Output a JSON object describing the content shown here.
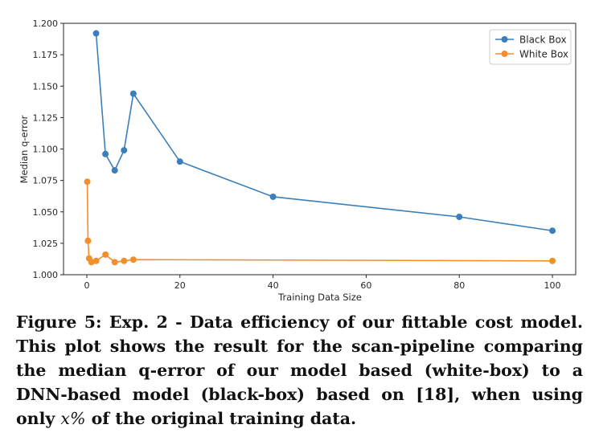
{
  "chart_data": {
    "type": "line",
    "title": "",
    "xlabel": "Training Data Size",
    "ylabel": "Median q-error",
    "xlim": [
      -5,
      105
    ],
    "ylim": [
      1.0,
      1.2
    ],
    "xticks": [
      0,
      20,
      40,
      60,
      80,
      100
    ],
    "yticks": [
      1.0,
      1.025,
      1.05,
      1.075,
      1.1,
      1.125,
      1.15,
      1.175,
      1.2
    ],
    "ytick_labels": [
      "1.000",
      "1.025",
      "1.050",
      "1.075",
      "1.100",
      "1.125",
      "1.150",
      "1.175",
      "1.200"
    ],
    "grid": false,
    "legend_position": "top-right",
    "series": [
      {
        "name": "Black Box",
        "color": "#3a7fb9",
        "x": [
          2,
          4,
          6,
          8,
          10,
          20,
          40,
          80,
          100
        ],
        "y": [
          1.192,
          1.096,
          1.083,
          1.099,
          1.144,
          1.09,
          1.062,
          1.046,
          1.035
        ]
      },
      {
        "name": "White Box",
        "color": "#f28e2b",
        "x": [
          0.1,
          0.25,
          0.5,
          1,
          2,
          4,
          6,
          8,
          10,
          100
        ],
        "y": [
          1.074,
          1.027,
          1.013,
          1.01,
          1.011,
          1.016,
          1.01,
          1.011,
          1.012,
          1.011
        ]
      }
    ]
  },
  "caption": {
    "text": "Figure 5: Exp. 2 - Data efficiency of our fittable cost model. This plot shows the result for the scan-pipeline comparing the median q-error of our model based (white-box) to a DNN-based model (black-box) based on [18], when using only ",
    "math": "x%",
    "tail": " of the original training data."
  }
}
